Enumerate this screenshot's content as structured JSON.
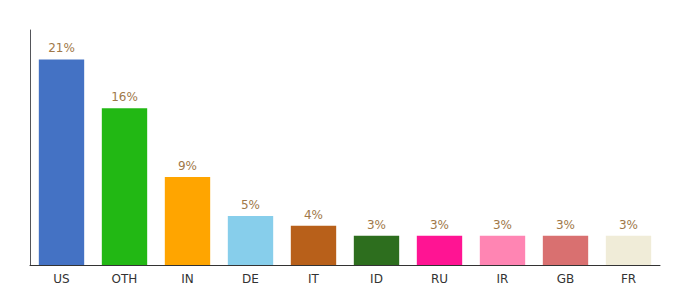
{
  "chart_data": {
    "type": "bar",
    "categories": [
      "US",
      "OTH",
      "IN",
      "DE",
      "IT",
      "ID",
      "RU",
      "IR",
      "GB",
      "FR"
    ],
    "values": [
      21,
      16,
      9,
      5,
      4,
      3,
      3,
      3,
      3,
      3
    ],
    "value_labels": [
      "21%",
      "16%",
      "9%",
      "5%",
      "4%",
      "3%",
      "3%",
      "3%",
      "3%",
      "3%"
    ],
    "colors": [
      "#4472c4",
      "#22b814",
      "#ffa500",
      "#87ceeb",
      "#b8601a",
      "#2d6e1e",
      "#ff1493",
      "#ff85b3",
      "#d97070",
      "#f0ecd8"
    ],
    "ylim": [
      0,
      24
    ],
    "data_labels": true,
    "tick_labels": "x",
    "grid": false
  }
}
